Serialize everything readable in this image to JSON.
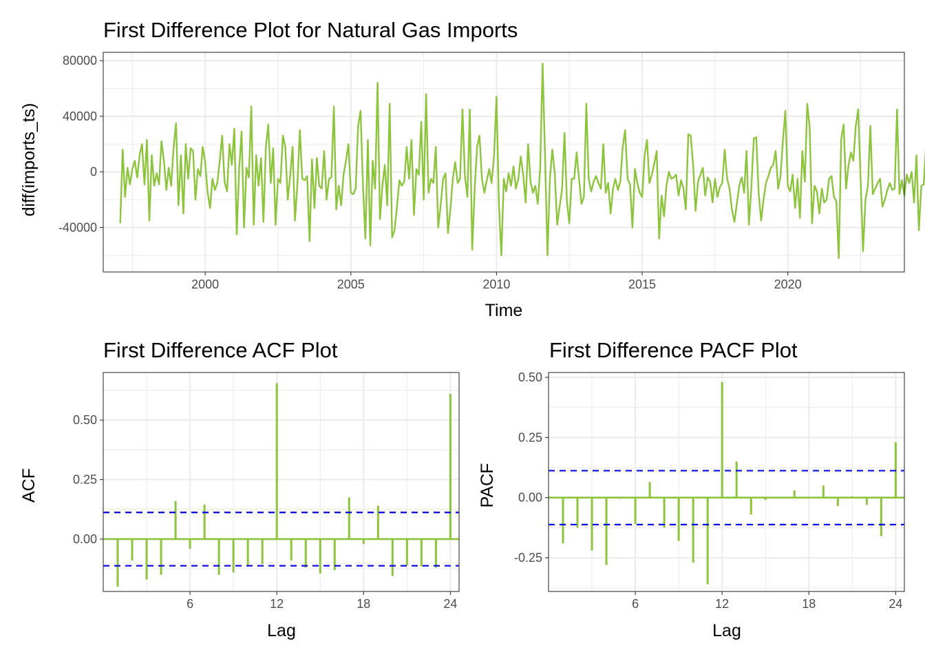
{
  "chart_data": [
    {
      "type": "line",
      "title": "First Difference Plot for Natural Gas Imports",
      "xlabel": "Time",
      "ylabel": "diff(imports_ts)",
      "xlim": [
        1996.5,
        2024.0
      ],
      "ylim": [
        -72000,
        86000
      ],
      "x_ticks": [
        2000,
        2005,
        2010,
        2015,
        2020
      ],
      "x_tick_labels": [
        "2000",
        "2005",
        "2010",
        "2015",
        "2020"
      ],
      "y_ticks": [
        -40000,
        0,
        40000,
        80000
      ],
      "y_tick_labels": [
        "-40000",
        "0",
        "40000",
        "80000"
      ],
      "grid": true,
      "line_color": "#8cc43c",
      "x_start": 1997.083,
      "x_step": 0.083333,
      "y": [
        -37000,
        16000,
        -18000,
        3000,
        -9000,
        2000,
        8000,
        -4000,
        12000,
        20000,
        -9000,
        23000,
        -35000,
        12000,
        -10000,
        -1000,
        -9000,
        22000,
        8000,
        -13000,
        3000,
        -10000,
        18000,
        35000,
        -24000,
        12000,
        -30000,
        20000,
        -5000,
        17000,
        15000,
        -20000,
        2000,
        -3000,
        18000,
        7000,
        -15000,
        -26000,
        -5000,
        -13000,
        -8000,
        8000,
        26000,
        -7000,
        -14000,
        20000,
        5000,
        31000,
        -45000,
        2000,
        29000,
        -40000,
        3000,
        -4000,
        47000,
        -38000,
        12000,
        -10000,
        10000,
        -36000,
        18000,
        34000,
        -8000,
        17000,
        -38000,
        -5000,
        -8000,
        26000,
        18000,
        -20000,
        -3000,
        18000,
        -35000,
        -8000,
        30000,
        -5000,
        -6000,
        -3000,
        -50000,
        9000,
        -26000,
        10000,
        -10000,
        -12000,
        15000,
        -20000,
        -5000,
        -4000,
        47000,
        -27000,
        -10000,
        -24000,
        -2000,
        8000,
        20000,
        -15000,
        -16000,
        -12000,
        33000,
        44000,
        -10000,
        -48000,
        23000,
        -53000,
        8000,
        -12000,
        64000,
        -34000,
        -10000,
        5000,
        -24000,
        49000,
        -47000,
        -42000,
        -25000,
        -6000,
        -10000,
        -7000,
        18000,
        -5000,
        23000,
        -31000,
        2000,
        -2000,
        36000,
        -20000,
        56000,
        -15000,
        -5000,
        -8000,
        18000,
        -40000,
        -24000,
        -5000,
        -1000,
        -44000,
        -27000,
        -5000,
        7000,
        -8000,
        -5000,
        45000,
        -3000,
        -18000,
        45000,
        -56000,
        -12000,
        18000,
        26000,
        -5000,
        -15000,
        -6000,
        2000,
        -8000,
        12000,
        54000,
        -23000,
        -60000,
        -5000,
        -14000,
        -1000,
        -10000,
        4000,
        -12000,
        -5000,
        11000,
        -2000,
        -22000,
        20000,
        -7000,
        -15000,
        -10000,
        -23000,
        3000,
        78000,
        12000,
        -60000,
        -5000,
        16000,
        -1000,
        -38000,
        -25000,
        -13000,
        28000,
        -21000,
        -37000,
        -5000,
        -5000,
        14000,
        -5000,
        -23000,
        -18000,
        49000,
        -5000,
        -14000,
        -7000,
        -3000,
        -8000,
        -12000,
        20000,
        -15000,
        -8000,
        -30000,
        -12000,
        -5000,
        -13000,
        -7000,
        18000,
        30000,
        -5000,
        -9000,
        -40000,
        2000,
        -8000,
        -15000,
        -18000,
        12000,
        23000,
        -8000,
        -2000,
        6000,
        15000,
        -48000,
        -17000,
        -32000,
        -10000,
        0,
        -5000,
        -4000,
        -2000,
        -17000,
        -6000,
        -12000,
        -27000,
        27000,
        26000,
        5000,
        -28000,
        -7000,
        -2000,
        3000,
        -17000,
        -4000,
        -7000,
        -22000,
        -5000,
        -18000,
        -11000,
        -8000,
        16000,
        -5000,
        -12000,
        -27000,
        -36000,
        -23000,
        -10000,
        -4000,
        -15000,
        15000,
        -38000,
        -10000,
        24000,
        25000,
        -15000,
        -35000,
        -20000,
        -8000,
        -3000,
        3000,
        5000,
        15000,
        -12000,
        -3000,
        23000,
        44000,
        -10000,
        -14000,
        -2000,
        -26000,
        -5000,
        -33000,
        15000,
        -7000,
        49000,
        32000,
        -37000,
        -10000,
        -14000,
        -30000,
        -12000,
        -22000,
        -20000,
        -5000,
        -3000,
        -18000,
        -21000,
        -62000,
        24000,
        34000,
        -12000,
        5000,
        14000,
        8000,
        33000,
        45000,
        -6000,
        -57000,
        -20000,
        -10000,
        33000,
        -16000,
        -12000,
        -8000,
        -5000,
        -25000,
        -20000,
        -13000,
        -8000,
        -13000,
        -12000,
        45000,
        -16000,
        -6000,
        -17000,
        -2000,
        -8000,
        0,
        -22000,
        12000,
        -42000,
        -10000,
        -9000,
        22000,
        4000,
        -10000,
        -27000,
        28000,
        -20000,
        -6000,
        -15000,
        -28000,
        -10000,
        -5000,
        10000,
        -20000,
        10000,
        -12000,
        8000,
        -13000,
        -24000,
        -16000,
        -21000,
        -10000,
        -5000,
        12000,
        -25000,
        -8000,
        -15000,
        -10000,
        25000,
        -20000,
        4000,
        -35000,
        20000,
        -6000,
        -9000,
        10000,
        -23000,
        -9000,
        -20000,
        -17000,
        -2000,
        -22000,
        -11000,
        -14000,
        -31000,
        -38000,
        -14000,
        -10000,
        2000,
        -2000,
        -16000,
        -21000,
        43000,
        -38000,
        2000,
        -14000,
        -14000,
        -5000,
        28000,
        -21000,
        -2000,
        6000,
        7000,
        46000
      ]
    },
    {
      "type": "bar",
      "title": "First Difference ACF Plot",
      "xlabel": "Lag",
      "ylabel": "ACF",
      "xlim": [
        0,
        24.6
      ],
      "ylim": [
        -0.22,
        0.7
      ],
      "x_ticks": [
        6,
        12,
        18,
        24
      ],
      "x_tick_labels": [
        "6",
        "12",
        "18",
        "24"
      ],
      "y_ticks": [
        0.0,
        0.25,
        0.5
      ],
      "y_tick_labels": [
        "0.00",
        "0.25",
        "0.50"
      ],
      "lags": [
        1,
        2,
        3,
        4,
        5,
        6,
        7,
        8,
        9,
        10,
        11,
        12,
        13,
        14,
        15,
        16,
        17,
        18,
        19,
        20,
        21,
        22,
        23,
        24
      ],
      "values": [
        -0.2,
        -0.09,
        -0.17,
        -0.15,
        0.16,
        -0.04,
        0.145,
        -0.15,
        -0.14,
        -0.11,
        -0.105,
        0.655,
        -0.09,
        -0.12,
        -0.145,
        -0.13,
        0.175,
        -0.02,
        0.14,
        -0.155,
        -0.11,
        -0.115,
        -0.12,
        0.61
      ],
      "ci": 0.112,
      "grid": true,
      "bar_color": "#8cc43c",
      "ci_color": "#0000ee"
    },
    {
      "type": "bar",
      "title": "First Difference PACF Plot",
      "xlabel": "Lag",
      "ylabel": "PACF",
      "xlim": [
        0,
        24.6
      ],
      "ylim": [
        -0.39,
        0.52
      ],
      "x_ticks": [
        6,
        12,
        18,
        24
      ],
      "x_tick_labels": [
        "6",
        "12",
        "18",
        "24"
      ],
      "y_ticks": [
        -0.25,
        0.0,
        0.25,
        0.5
      ],
      "y_tick_labels": [
        "-0.25",
        "0.00",
        "0.25",
        "0.50"
      ],
      "lags": [
        1,
        2,
        3,
        4,
        5,
        6,
        7,
        8,
        9,
        10,
        11,
        12,
        13,
        14,
        15,
        16,
        17,
        18,
        19,
        20,
        21,
        22,
        23,
        24
      ],
      "values": [
        -0.19,
        -0.125,
        -0.22,
        -0.28,
        -0.005,
        -0.11,
        0.065,
        -0.125,
        -0.18,
        -0.27,
        -0.36,
        0.48,
        0.15,
        -0.07,
        -0.01,
        0.0,
        0.03,
        0.0,
        0.05,
        -0.035,
        0.005,
        -0.03,
        -0.16,
        0.23
      ],
      "ci": 0.112,
      "grid": true,
      "bar_color": "#8cc43c",
      "ci_color": "#0000ee"
    }
  ]
}
